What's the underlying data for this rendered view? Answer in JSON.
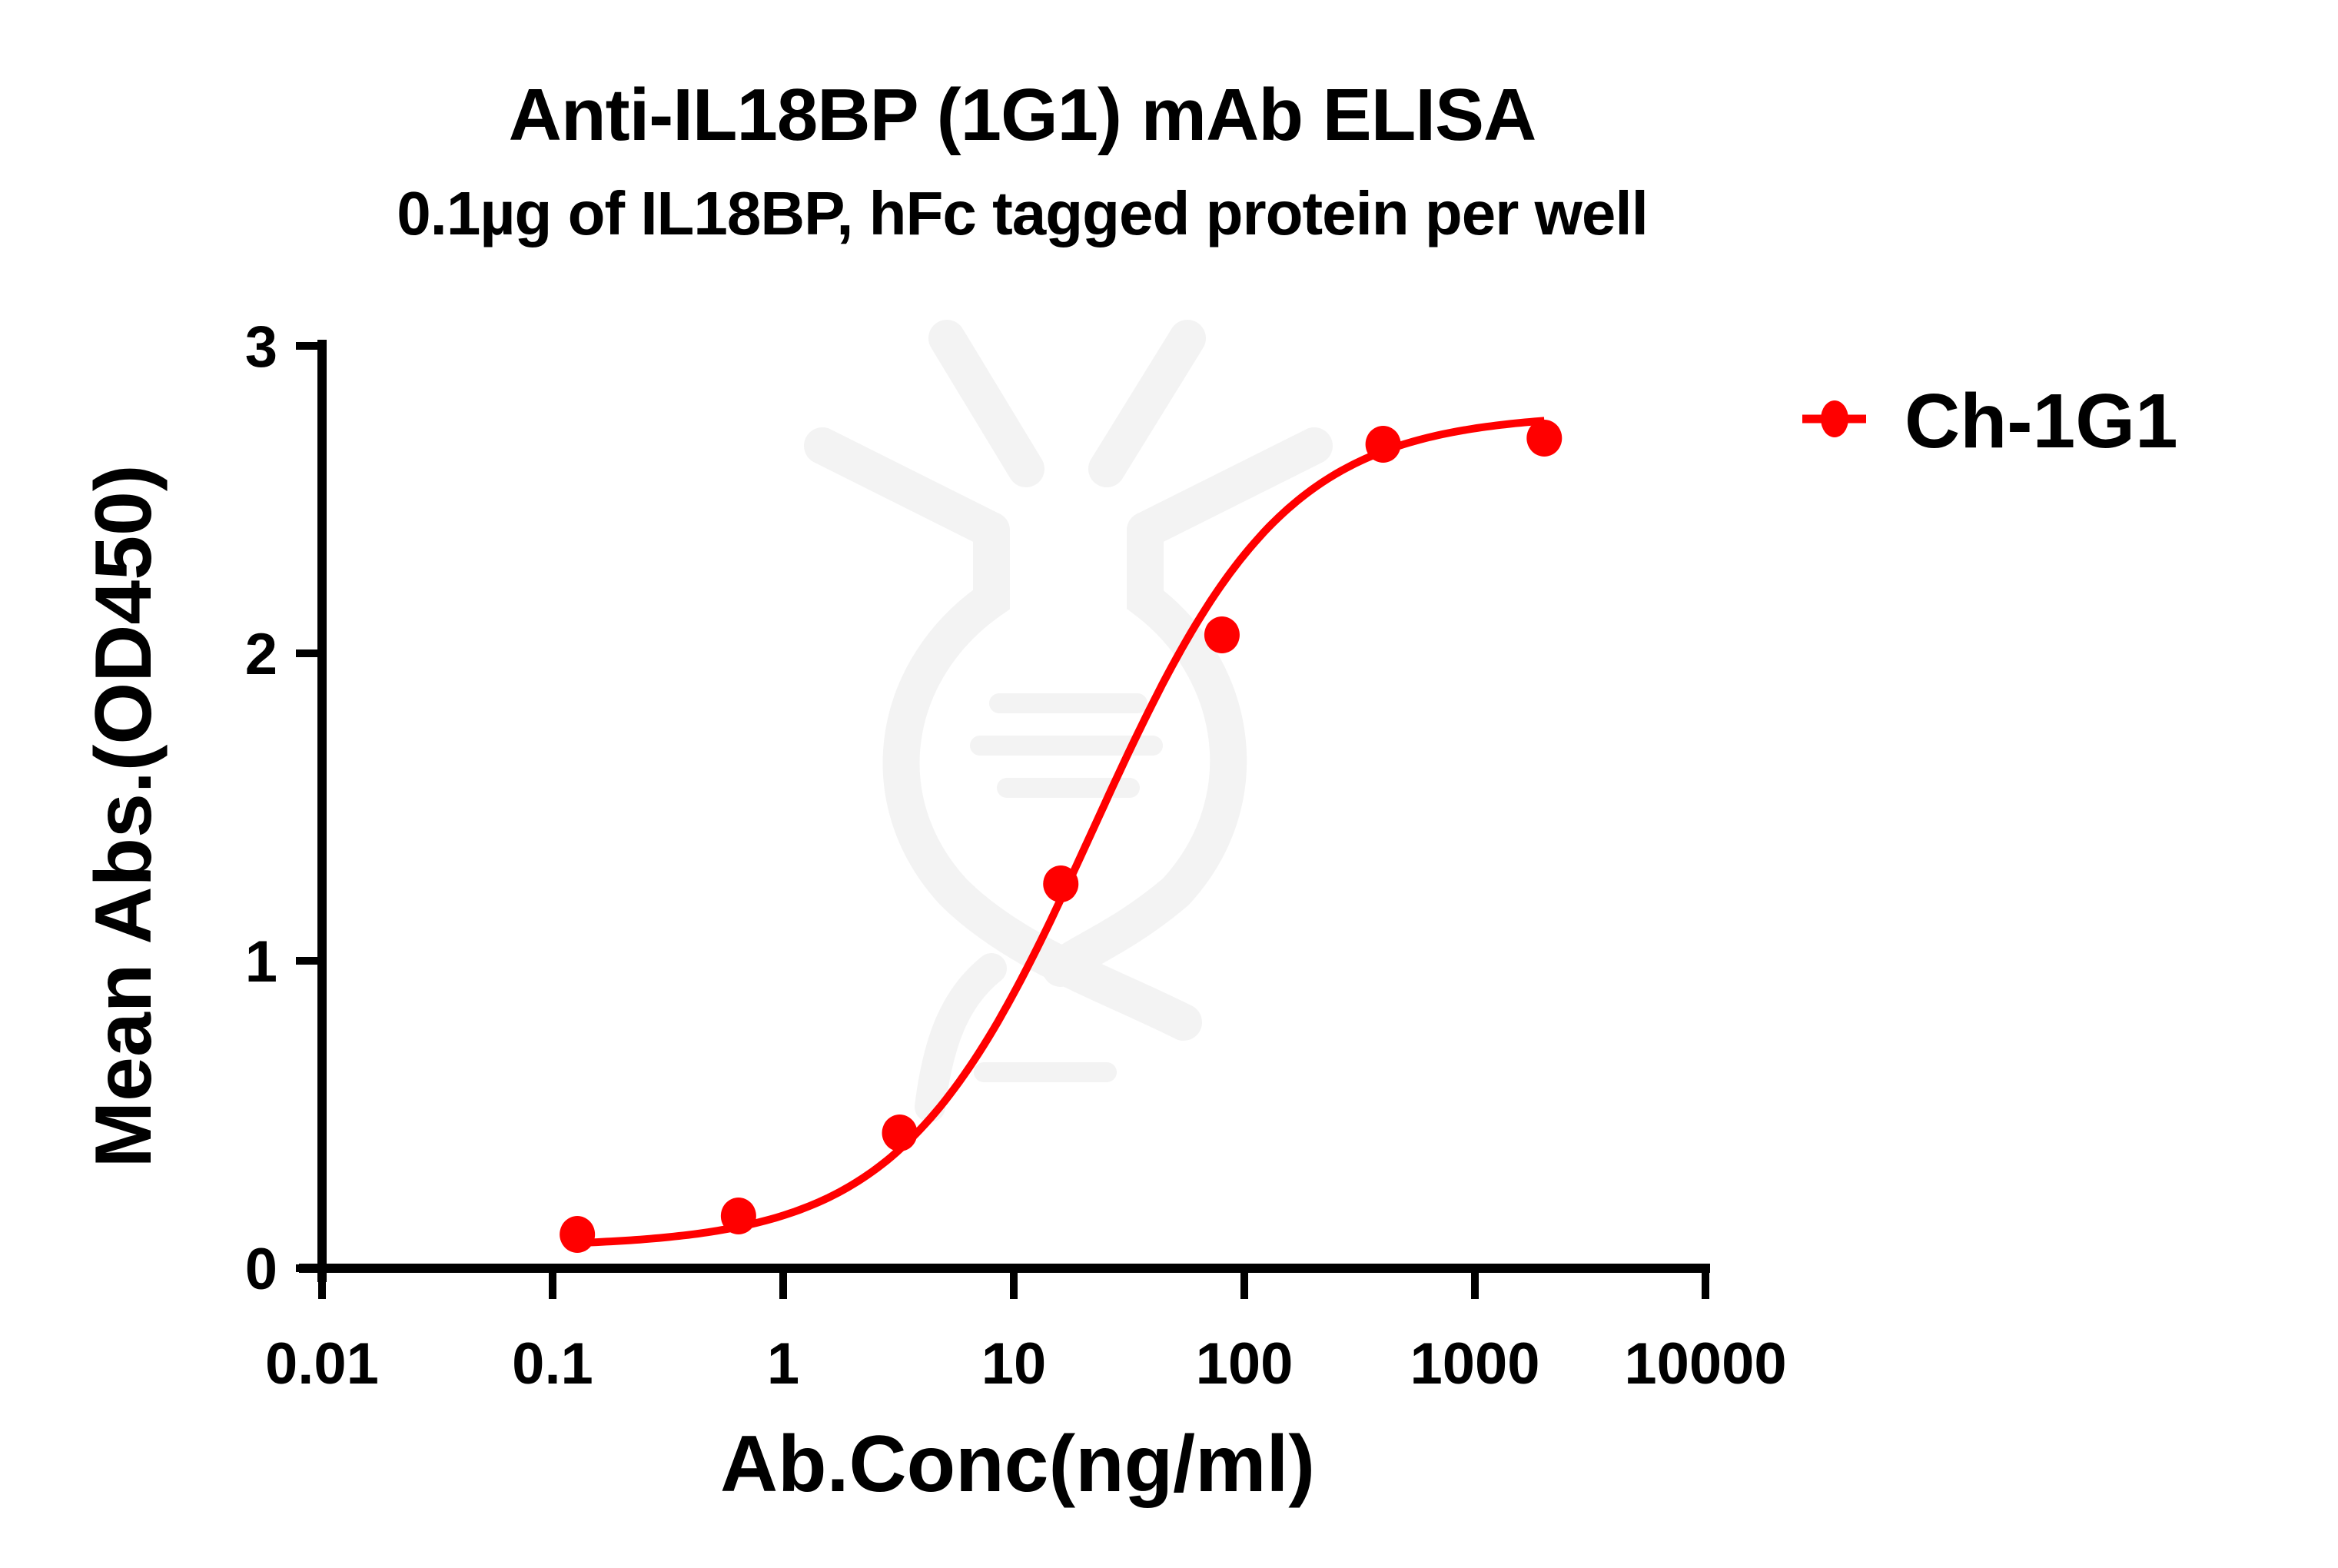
{
  "chart_data": {
    "type": "line",
    "title": "Anti-IL18BP (1G1) mAb ELISA",
    "subtitle": "0.1µg of IL18BP, hFc tagged protein per well",
    "xlabel": "Ab.Conc(ng/ml)",
    "ylabel": "Mean Abs.(OD450)",
    "xscale": "log",
    "xlim": [
      0.01,
      10000
    ],
    "ylim": [
      0,
      3
    ],
    "x_ticks": [
      "0.01",
      "0.1",
      "1",
      "10",
      "100",
      "1000",
      "10000"
    ],
    "y_ticks": [
      "0",
      "1",
      "2",
      "3"
    ],
    "grid": false,
    "legend_position": "top-right outside",
    "series": [
      {
        "name": "Ch-1G1",
        "color": "#ff0000",
        "marker": "circle",
        "x": [
          0.128,
          0.64,
          3.2,
          16,
          80,
          400,
          2000
        ],
        "y": [
          0.11,
          0.17,
          0.44,
          1.25,
          2.06,
          2.68,
          2.7
        ],
        "fit": "4PL sigmoidal curve"
      }
    ]
  },
  "watermark": {
    "icon": "dna-antibody-logo-icon",
    "color": "#f3f3f3"
  }
}
